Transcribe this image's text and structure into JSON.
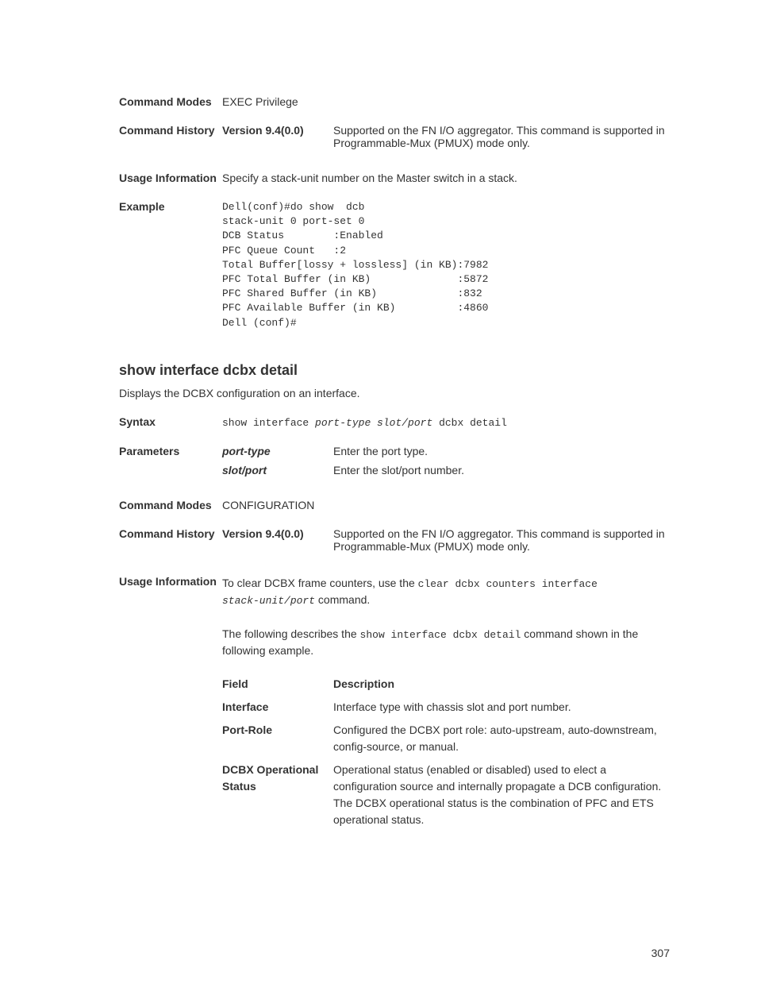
{
  "top": {
    "command_modes_label": "Command Modes",
    "command_modes_value": "EXEC Privilege",
    "command_history_label": "Command History",
    "history_version": "Version 9.4(0.0)",
    "history_text": "Supported on the FN I/O aggregator. This command is supported in Programmable-Mux (PMUX) mode only.",
    "usage_info_label": "Usage Information",
    "usage_info_text": "Specify a stack-unit number on the Master switch in a stack.",
    "example_label": "Example",
    "example_code": "Dell(conf)#do show  dcb\nstack-unit 0 port-set 0\nDCB Status        :Enabled\nPFC Queue Count   :2\nTotal Buffer[lossy + lossless] (in KB):7982\nPFC Total Buffer (in KB)              :5872\nPFC Shared Buffer (in KB)             :832\nPFC Available Buffer (in KB)          :4860\nDell (conf)#"
  },
  "section": {
    "title": "show interface dcbx detail",
    "desc": "Displays the DCBX configuration on an interface.",
    "syntax_label": "Syntax",
    "syntax_prefix": "show interface ",
    "syntax_italic": "port-type slot/port",
    "syntax_suffix": " dcbx detail",
    "parameters_label": "Parameters",
    "param_port_type": "port-type",
    "param_port_type_desc": "Enter the port type.",
    "param_slot_port": "slot/port",
    "param_slot_port_desc": "Enter the slot/port number.",
    "command_modes_label": "Command Modes",
    "command_modes_value": "CONFIGURATION",
    "command_history_label": "Command History",
    "history_version": "Version 9.4(0.0)",
    "history_text": "Supported on the FN I/O aggregator. This command is supported in Programmable-Mux (PMUX) mode only.",
    "usage_info_label": "Usage Information",
    "usage_line1_a": "To clear DCBX frame counters, use the ",
    "usage_line1_code1": "clear dcbx counters interface",
    "usage_line1_b": "",
    "usage_line2_code": "stack-unit/port",
    "usage_line2_tail": " command.",
    "usage_line3_a": "The following describes the ",
    "usage_line3_code": "show interface dcbx detail",
    "usage_line3_b": " command shown in the following example.",
    "field_header": "Field",
    "desc_header": "Description",
    "f_interface": "Interface",
    "f_interface_desc": "Interface type with chassis slot and port number.",
    "f_portrole": "Port-Role",
    "f_portrole_desc": "Configured the DCBX port role: auto-upstream, auto-downstream, config-source, or manual.",
    "f_dcbx_op": "DCBX Operational Status",
    "f_dcbx_op_desc": "Operational status (enabled or disabled) used to elect a configuration source and internally propagate a DCB configuration. The DCBX operational status is the combination of PFC and ETS operational status."
  },
  "page_number": "307"
}
